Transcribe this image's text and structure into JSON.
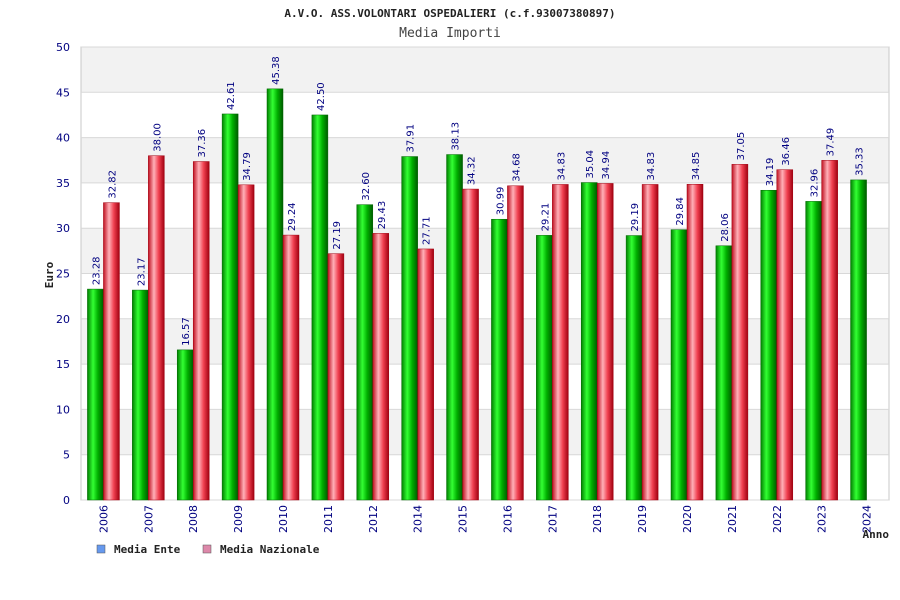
{
  "chart_data": {
    "type": "bar",
    "title": "A.V.O. ASS.VOLONTARI OSPEDALIERI (c.f.93007380897)",
    "subtitle": "Media Importi",
    "xlabel": "Anno",
    "ylabel": "Euro",
    "ylim": [
      0,
      50
    ],
    "yticks": [
      0,
      5,
      10,
      15,
      20,
      25,
      30,
      35,
      40,
      45,
      50
    ],
    "grid": true,
    "legend_position": "bottom-left",
    "categories": [
      "2006",
      "2007",
      "2008",
      "2009",
      "2010",
      "2011",
      "2012",
      "2014",
      "2015",
      "2016",
      "2017",
      "2018",
      "2019",
      "2020",
      "2021",
      "2022",
      "2023",
      "2024"
    ],
    "series": [
      {
        "name": "Media Ente",
        "legend_color": "#6699ee",
        "bar_color": "#00c000",
        "values": [
          23.28,
          23.17,
          16.57,
          42.61,
          45.38,
          42.5,
          32.6,
          37.91,
          38.13,
          30.99,
          29.21,
          35.04,
          29.19,
          29.84,
          28.06,
          34.19,
          32.96,
          35.33
        ],
        "labels": [
          "23.28",
          "23.17",
          "16.57",
          "42.61",
          "45.38",
          "42.50",
          "32.60",
          "37.91",
          "38.13",
          "30.99",
          "29.21",
          "35.04",
          "29.19",
          "29.84",
          "28.06",
          "34.19",
          "32.96",
          "35.33"
        ]
      },
      {
        "name": "Media Nazionale",
        "legend_color": "#dd88aa",
        "bar_color": "#e8303a",
        "values": [
          32.82,
          38.0,
          37.36,
          34.79,
          29.24,
          27.19,
          29.43,
          27.71,
          34.32,
          34.68,
          34.83,
          34.94,
          34.83,
          34.85,
          37.05,
          36.46,
          37.49,
          null
        ],
        "labels": [
          "32.82",
          "38.00",
          "37.36",
          "34.79",
          "29.24",
          "27.19",
          "29.43",
          "27.71",
          "34.32",
          "34.68",
          "34.83",
          "34.94",
          "34.83",
          "34.85",
          "37.05",
          "36.46",
          "37.49",
          null
        ]
      }
    ]
  }
}
